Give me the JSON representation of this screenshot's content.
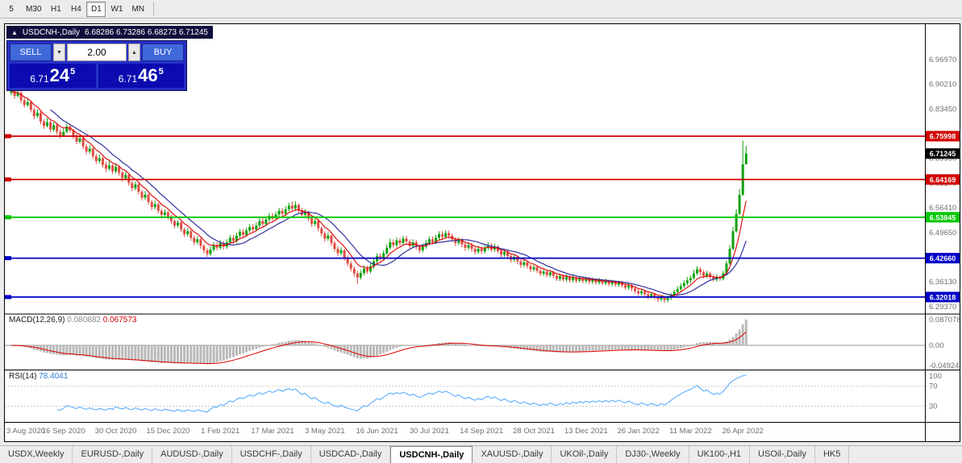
{
  "toolbar": {
    "timeframes": [
      "5",
      "M30",
      "H1",
      "H4",
      "D1",
      "W1",
      "MN"
    ],
    "active": "D1"
  },
  "chart_header": {
    "collapse_icon": "▲",
    "title": "USDCNH-,Daily",
    "ohlc": "6.68286 6.73286 6.68273 6.71245"
  },
  "trade_panel": {
    "sell_label": "SELL",
    "buy_label": "BUY",
    "volume": "2.00",
    "sell_price": {
      "base": "6.71",
      "big": "24",
      "sup": "5"
    },
    "buy_price": {
      "base": "6.71",
      "big": "46",
      "sup": "5"
    }
  },
  "indicators": {
    "macd": {
      "label": "MACD(12,26,9)",
      "value1": "0.080882",
      "value2": "0.067573",
      "axis": [
        "0.087078",
        "0.00",
        "-0.04924"
      ]
    },
    "rsi": {
      "label": "RSI(14)",
      "value": "78.4041",
      "axis": [
        "100",
        "70",
        "30"
      ]
    }
  },
  "tabs": {
    "items": [
      "USDX,Weekly",
      "EURUSD-,Daily",
      "AUDUSD-,Daily",
      "USDCHF-,Daily",
      "USDCAD-,Daily",
      "USDCNH-,Daily",
      "XAUUSD-,Daily",
      "UKOil-,Daily",
      "DJ30-,Weekly",
      "UK100-,H1",
      "USOil-,Daily",
      "HK5"
    ],
    "active": "USDCNH-,Daily"
  },
  "chart_data": {
    "type": "candlestick",
    "symbol": "USDCNH-",
    "period": "Daily",
    "price_range": [
      6.276,
      7.064
    ],
    "price_axis_labels": [
      "6.96970",
      "6.90210",
      "6.83450",
      "6.76690",
      "6.69930",
      "6.63170",
      "6.56410",
      "6.49650",
      "6.42890",
      "6.36130",
      "6.29370"
    ],
    "date_labels": [
      "3 Aug 2020",
      "16 Sep 2020",
      "30 Oct 2020",
      "15 Dec 2020",
      "1 Feb 2021",
      "17 Mar 2021",
      "3 May 2021",
      "16 Jun 2021",
      "30 Jul 2021",
      "14 Sep 2021",
      "28 Oct 2021",
      "13 Dec 2021",
      "26 Jan 2022",
      "11 Mar 2022",
      "26 Apr 2022"
    ],
    "bars_per_label": 16,
    "levels": [
      {
        "price": 6.75998,
        "label": "6.75998",
        "color": "#d20000"
      },
      {
        "price": 6.64169,
        "label": "6.64169",
        "color": "#d20000"
      },
      {
        "price": 6.53845,
        "label": "6.53845",
        "color": "#00c800"
      },
      {
        "price": 6.4266,
        "label": "6.42660",
        "color": "#0000c8"
      },
      {
        "price": 6.32018,
        "label": "6.32018",
        "color": "#0000c8"
      }
    ],
    "current_price": {
      "price": 6.71245,
      "label": "6.71245",
      "color": "#000000"
    },
    "colors": {
      "up": "#0ca10c",
      "down": "#e04b42",
      "ma_fast": "#e00000",
      "ma_slow": "#30309e",
      "macd_hist": "#b9b9b9",
      "macd_signal": "#e00000",
      "rsi_line": "#4da6ff"
    },
    "ma_fast_period": 7,
    "ma_slow_period": 13,
    "candles": [
      [
        6.878,
        6.906,
        6.872,
        6.883
      ],
      [
        6.883,
        6.893,
        6.862,
        6.87
      ],
      [
        6.87,
        6.9,
        6.866,
        6.878
      ],
      [
        6.878,
        6.884,
        6.85,
        6.858
      ],
      [
        6.858,
        6.864,
        6.838,
        6.845
      ],
      [
        6.845,
        6.862,
        6.84,
        6.853
      ],
      [
        6.853,
        6.857,
        6.825,
        6.832
      ],
      [
        6.832,
        6.838,
        6.806,
        6.815
      ],
      [
        6.815,
        6.834,
        6.81,
        6.824
      ],
      [
        6.824,
        6.828,
        6.792,
        6.8
      ],
      [
        6.8,
        6.806,
        6.78,
        6.788
      ],
      [
        6.788,
        6.81,
        6.784,
        6.798
      ],
      [
        6.798,
        6.803,
        6.77,
        6.778
      ],
      [
        6.778,
        6.798,
        6.772,
        6.79
      ],
      [
        6.79,
        6.795,
        6.764,
        6.772
      ],
      [
        6.772,
        6.78,
        6.754,
        6.762
      ],
      [
        6.762,
        6.782,
        6.758,
        6.772
      ],
      [
        6.772,
        6.794,
        6.768,
        6.786
      ],
      [
        6.786,
        6.792,
        6.77,
        6.776
      ],
      [
        6.776,
        6.78,
        6.752,
        6.76
      ],
      [
        6.76,
        6.766,
        6.738,
        6.745
      ],
      [
        6.745,
        6.762,
        6.74,
        6.754
      ],
      [
        6.754,
        6.758,
        6.724,
        6.732
      ],
      [
        6.732,
        6.738,
        6.71,
        6.718
      ],
      [
        6.718,
        6.736,
        6.712,
        6.726
      ],
      [
        6.726,
        6.73,
        6.698,
        6.705
      ],
      [
        6.705,
        6.712,
        6.684,
        6.692
      ],
      [
        6.692,
        6.71,
        6.686,
        6.7
      ],
      [
        6.7,
        6.705,
        6.674,
        6.682
      ],
      [
        6.682,
        6.69,
        6.662,
        6.671
      ],
      [
        6.671,
        6.692,
        6.666,
        6.68
      ],
      [
        6.68,
        6.684,
        6.656,
        6.664
      ],
      [
        6.664,
        6.686,
        6.658,
        6.676
      ],
      [
        6.676,
        6.68,
        6.652,
        6.66
      ],
      [
        6.66,
        6.665,
        6.636,
        6.645
      ],
      [
        6.645,
        6.662,
        6.64,
        6.654
      ],
      [
        6.654,
        6.658,
        6.624,
        6.632
      ],
      [
        6.632,
        6.638,
        6.61,
        6.618
      ],
      [
        6.618,
        6.636,
        6.612,
        6.628
      ],
      [
        6.628,
        6.632,
        6.6,
        6.608
      ],
      [
        6.608,
        6.614,
        6.584,
        6.592
      ],
      [
        6.592,
        6.61,
        6.586,
        6.6
      ],
      [
        6.6,
        6.604,
        6.572,
        6.58
      ],
      [
        6.58,
        6.586,
        6.558,
        6.566
      ],
      [
        6.566,
        6.584,
        6.56,
        6.574
      ],
      [
        6.574,
        6.578,
        6.548,
        6.556
      ],
      [
        6.556,
        6.562,
        6.536,
        6.545
      ],
      [
        6.545,
        6.56,
        6.538,
        6.552
      ],
      [
        6.552,
        6.556,
        6.532,
        6.54
      ],
      [
        6.54,
        6.545,
        6.52,
        6.528
      ],
      [
        6.528,
        6.532,
        6.508,
        6.516
      ],
      [
        6.516,
        6.53,
        6.51,
        6.524
      ],
      [
        6.524,
        6.528,
        6.498,
        6.505
      ],
      [
        6.505,
        6.51,
        6.484,
        6.492
      ],
      [
        6.492,
        6.508,
        6.486,
        6.5
      ],
      [
        6.5,
        6.504,
        6.474,
        6.482
      ],
      [
        6.482,
        6.488,
        6.462,
        6.47
      ],
      [
        6.47,
        6.486,
        6.464,
        6.478
      ],
      [
        6.478,
        6.482,
        6.452,
        6.46
      ],
      [
        6.46,
        6.466,
        6.44,
        6.448
      ],
      [
        6.448,
        6.454,
        6.43,
        6.438
      ],
      [
        6.438,
        6.458,
        6.432,
        6.45
      ],
      [
        6.45,
        6.47,
        6.444,
        6.462
      ],
      [
        6.462,
        6.47,
        6.448,
        6.455
      ],
      [
        6.455,
        6.476,
        6.45,
        6.468
      ],
      [
        6.468,
        6.474,
        6.45,
        6.458
      ],
      [
        6.458,
        6.478,
        6.452,
        6.47
      ],
      [
        6.47,
        6.49,
        6.464,
        6.482
      ],
      [
        6.482,
        6.49,
        6.466,
        6.474
      ],
      [
        6.474,
        6.496,
        6.468,
        6.488
      ],
      [
        6.488,
        6.506,
        6.482,
        6.498
      ],
      [
        6.498,
        6.506,
        6.484,
        6.49
      ],
      [
        6.49,
        6.51,
        6.485,
        6.502
      ],
      [
        6.502,
        6.52,
        6.496,
        6.512
      ],
      [
        6.512,
        6.52,
        6.498,
        6.505
      ],
      [
        6.505,
        6.524,
        6.5,
        6.516
      ],
      [
        6.516,
        6.536,
        6.51,
        6.528
      ],
      [
        6.528,
        6.536,
        6.512,
        6.52
      ],
      [
        6.52,
        6.54,
        6.514,
        6.532
      ],
      [
        6.532,
        6.55,
        6.526,
        6.542
      ],
      [
        6.542,
        6.55,
        6.528,
        6.535
      ],
      [
        6.535,
        6.554,
        6.53,
        6.546
      ],
      [
        6.546,
        6.564,
        6.54,
        6.556
      ],
      [
        6.556,
        6.564,
        6.542,
        6.548
      ],
      [
        6.548,
        6.568,
        6.542,
        6.56
      ],
      [
        6.56,
        6.578,
        6.554,
        6.57
      ],
      [
        6.57,
        6.582,
        6.556,
        6.562
      ],
      [
        6.562,
        6.582,
        6.556,
        6.572
      ],
      [
        6.572,
        6.576,
        6.55,
        6.558
      ],
      [
        6.558,
        6.564,
        6.538,
        6.545
      ],
      [
        6.545,
        6.56,
        6.538,
        6.552
      ],
      [
        6.552,
        6.556,
        6.528,
        6.535
      ],
      [
        6.535,
        6.54,
        6.512,
        6.52
      ],
      [
        6.52,
        6.536,
        6.514,
        6.528
      ],
      [
        6.528,
        6.532,
        6.5,
        6.508
      ],
      [
        6.508,
        6.514,
        6.486,
        6.494
      ],
      [
        6.494,
        6.5,
        6.472,
        6.48
      ],
      [
        6.48,
        6.496,
        6.474,
        6.488
      ],
      [
        6.488,
        6.492,
        6.46,
        6.468
      ],
      [
        6.468,
        6.474,
        6.444,
        6.452
      ],
      [
        6.452,
        6.458,
        6.432,
        6.44
      ],
      [
        6.44,
        6.456,
        6.434,
        6.448
      ],
      [
        6.448,
        6.452,
        6.42,
        6.428
      ],
      [
        6.428,
        6.434,
        6.404,
        6.412
      ],
      [
        6.412,
        6.418,
        6.39,
        6.398
      ],
      [
        6.398,
        6.404,
        6.376,
        6.385
      ],
      [
        6.385,
        6.392,
        6.356,
        6.374
      ],
      [
        6.374,
        6.394,
        6.368,
        6.386
      ],
      [
        6.386,
        6.406,
        6.38,
        6.398
      ],
      [
        6.398,
        6.406,
        6.384,
        6.39
      ],
      [
        6.39,
        6.412,
        6.385,
        6.404
      ],
      [
        6.404,
        6.426,
        6.398,
        6.418
      ],
      [
        6.418,
        6.44,
        6.412,
        6.432
      ],
      [
        6.432,
        6.44,
        6.418,
        6.425
      ],
      [
        6.425,
        6.448,
        6.42,
        6.44
      ],
      [
        6.44,
        6.464,
        6.435,
        6.455
      ],
      [
        6.455,
        6.48,
        6.45,
        6.47
      ],
      [
        6.47,
        6.478,
        6.455,
        6.462
      ],
      [
        6.462,
        6.484,
        6.456,
        6.475
      ],
      [
        6.475,
        6.482,
        6.46,
        6.468
      ],
      [
        6.468,
        6.488,
        6.462,
        6.48
      ],
      [
        6.48,
        6.488,
        6.464,
        6.472
      ],
      [
        6.472,
        6.478,
        6.452,
        6.46
      ],
      [
        6.46,
        6.478,
        6.454,
        6.47
      ],
      [
        6.47,
        6.476,
        6.45,
        6.458
      ],
      [
        6.458,
        6.464,
        6.44,
        6.448
      ],
      [
        6.448,
        6.466,
        6.442,
        6.458
      ],
      [
        6.458,
        6.476,
        6.452,
        6.468
      ],
      [
        6.468,
        6.486,
        6.462,
        6.478
      ],
      [
        6.478,
        6.486,
        6.464,
        6.47
      ],
      [
        6.47,
        6.49,
        6.465,
        6.482
      ],
      [
        6.482,
        6.5,
        6.476,
        6.492
      ],
      [
        6.492,
        6.5,
        6.478,
        6.485
      ],
      [
        6.485,
        6.503,
        6.48,
        6.495
      ],
      [
        6.495,
        6.502,
        6.48,
        6.488
      ],
      [
        6.488,
        6.494,
        6.47,
        6.478
      ],
      [
        6.478,
        6.484,
        6.46,
        6.468
      ],
      [
        6.468,
        6.484,
        6.462,
        6.476
      ],
      [
        6.476,
        6.482,
        6.456,
        6.464
      ],
      [
        6.464,
        6.47,
        6.446,
        6.455
      ],
      [
        6.455,
        6.47,
        6.448,
        6.462
      ],
      [
        6.462,
        6.468,
        6.444,
        6.452
      ],
      [
        6.452,
        6.458,
        6.436,
        6.444
      ],
      [
        6.444,
        6.46,
        6.438,
        6.452
      ],
      [
        6.452,
        6.458,
        6.438,
        6.445
      ],
      [
        6.445,
        6.462,
        6.44,
        6.455
      ],
      [
        6.455,
        6.47,
        6.448,
        6.462
      ],
      [
        6.462,
        6.468,
        6.444,
        6.45
      ],
      [
        6.45,
        6.466,
        6.444,
        6.458
      ],
      [
        6.458,
        6.462,
        6.44,
        6.446
      ],
      [
        6.446,
        6.452,
        6.428,
        6.436
      ],
      [
        6.436,
        6.45,
        6.43,
        6.444
      ],
      [
        6.444,
        6.448,
        6.424,
        6.432
      ],
      [
        6.432,
        6.438,
        6.414,
        6.422
      ],
      [
        6.422,
        6.436,
        6.416,
        6.43
      ],
      [
        6.43,
        6.434,
        6.41,
        6.418
      ],
      [
        6.418,
        6.424,
        6.4,
        6.408
      ],
      [
        6.408,
        6.422,
        6.402,
        6.415
      ],
      [
        6.415,
        6.42,
        6.398,
        6.405
      ],
      [
        6.405,
        6.41,
        6.388,
        6.396
      ],
      [
        6.396,
        6.408,
        6.39,
        6.402
      ],
      [
        6.402,
        6.406,
        6.386,
        6.392
      ],
      [
        6.392,
        6.398,
        6.378,
        6.384
      ],
      [
        6.384,
        6.396,
        6.378,
        6.39
      ],
      [
        6.39,
        6.394,
        6.374,
        6.38
      ],
      [
        6.38,
        6.394,
        6.374,
        6.388
      ],
      [
        6.388,
        6.392,
        6.372,
        6.378
      ],
      [
        6.378,
        6.384,
        6.364,
        6.37
      ],
      [
        6.37,
        6.384,
        6.364,
        6.378
      ],
      [
        6.378,
        6.382,
        6.362,
        6.368
      ],
      [
        6.368,
        6.382,
        6.362,
        6.376
      ],
      [
        6.376,
        6.38,
        6.36,
        6.366
      ],
      [
        6.366,
        6.38,
        6.36,
        6.374
      ],
      [
        6.374,
        6.378,
        6.358,
        6.365
      ],
      [
        6.365,
        6.378,
        6.36,
        6.372
      ],
      [
        6.372,
        6.377,
        6.358,
        6.364
      ],
      [
        6.364,
        6.376,
        6.358,
        6.37
      ],
      [
        6.37,
        6.375,
        6.356,
        6.362
      ],
      [
        6.362,
        6.374,
        6.356,
        6.368
      ],
      [
        6.368,
        6.372,
        6.354,
        6.36
      ],
      [
        6.36,
        6.372,
        6.354,
        6.366
      ],
      [
        6.366,
        6.37,
        6.352,
        6.358
      ],
      [
        6.358,
        6.37,
        6.352,
        6.364
      ],
      [
        6.364,
        6.368,
        6.35,
        6.356
      ],
      [
        6.356,
        6.368,
        6.35,
        6.362
      ],
      [
        6.362,
        6.366,
        6.348,
        6.354
      ],
      [
        6.354,
        6.365,
        6.348,
        6.36
      ],
      [
        6.36,
        6.364,
        6.346,
        6.352
      ],
      [
        6.352,
        6.358,
        6.34,
        6.346
      ],
      [
        6.346,
        6.358,
        6.34,
        6.352
      ],
      [
        6.352,
        6.356,
        6.336,
        6.344
      ],
      [
        6.344,
        6.35,
        6.33,
        6.336
      ],
      [
        6.336,
        6.342,
        6.324,
        6.33
      ],
      [
        6.33,
        6.342,
        6.324,
        6.336
      ],
      [
        6.336,
        6.34,
        6.32,
        6.328
      ],
      [
        6.328,
        6.334,
        6.314,
        6.322
      ],
      [
        6.322,
        6.334,
        6.316,
        6.328
      ],
      [
        6.328,
        6.332,
        6.312,
        6.32
      ],
      [
        6.32,
        6.326,
        6.306,
        6.314
      ],
      [
        6.314,
        6.326,
        6.308,
        6.32
      ],
      [
        6.32,
        6.324,
        6.304,
        6.312
      ],
      [
        6.312,
        6.325,
        6.306,
        6.318
      ],
      [
        6.318,
        6.332,
        6.312,
        6.326
      ],
      [
        6.326,
        6.34,
        6.32,
        6.334
      ],
      [
        6.334,
        6.35,
        6.328,
        6.342
      ],
      [
        6.342,
        6.358,
        6.336,
        6.35
      ],
      [
        6.35,
        6.366,
        6.344,
        6.358
      ],
      [
        6.358,
        6.375,
        6.352,
        6.366
      ],
      [
        6.366,
        6.38,
        6.358,
        6.372
      ],
      [
        6.372,
        6.395,
        6.368,
        6.385
      ],
      [
        6.385,
        6.404,
        6.38,
        6.396
      ],
      [
        6.396,
        6.402,
        6.38,
        6.388
      ],
      [
        6.388,
        6.394,
        6.372,
        6.378
      ],
      [
        6.378,
        6.392,
        6.372,
        6.385
      ],
      [
        6.385,
        6.39,
        6.368,
        6.375
      ],
      [
        6.375,
        6.382,
        6.362,
        6.368
      ],
      [
        6.368,
        6.382,
        6.362,
        6.375
      ],
      [
        6.375,
        6.38,
        6.364,
        6.37
      ],
      [
        6.37,
        6.392,
        6.366,
        6.385
      ],
      [
        6.385,
        6.42,
        6.382,
        6.412
      ],
      [
        6.412,
        6.462,
        6.408,
        6.452
      ],
      [
        6.452,
        6.512,
        6.448,
        6.5
      ],
      [
        6.5,
        6.56,
        6.496,
        6.548
      ],
      [
        6.548,
        6.615,
        6.545,
        6.6
      ],
      [
        6.6,
        6.748,
        6.596,
        6.683
      ],
      [
        6.6829,
        6.7329,
        6.6827,
        6.7125
      ]
    ]
  }
}
